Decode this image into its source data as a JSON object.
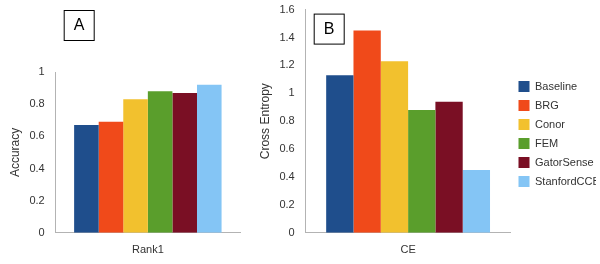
{
  "chart_data": [
    {
      "type": "bar",
      "annotation": "A",
      "ylabel": "Accuracy",
      "categories": [
        "Rank1"
      ],
      "series": [
        {
          "name": "Baseline",
          "color": "#1f4e8c",
          "values": [
            0.67
          ]
        },
        {
          "name": "BRG",
          "color": "#f04a1a",
          "values": [
            0.69
          ]
        },
        {
          "name": "Conor",
          "color": "#f2c12e",
          "values": [
            0.83
          ]
        },
        {
          "name": "FEM",
          "color": "#5a9e2c",
          "values": [
            0.88
          ]
        },
        {
          "name": "GatorSense",
          "color": "#7a0f24",
          "values": [
            0.87
          ]
        },
        {
          "name": "StanfordCCB",
          "color": "#84c5f5",
          "values": [
            0.92
          ]
        }
      ],
      "ylim": [
        0,
        1
      ],
      "yticks": [
        0,
        0.2,
        0.4,
        0.6,
        0.8,
        1
      ],
      "grid": false
    },
    {
      "type": "bar",
      "annotation": "B",
      "ylabel": "Cross Entropy",
      "categories": [
        "CE"
      ],
      "series": [
        {
          "name": "Baseline",
          "color": "#1f4e8c",
          "values": [
            1.13
          ]
        },
        {
          "name": "BRG",
          "color": "#f04a1a",
          "values": [
            1.45
          ]
        },
        {
          "name": "Conor",
          "color": "#f2c12e",
          "values": [
            1.23
          ]
        },
        {
          "name": "FEM",
          "color": "#5a9e2c",
          "values": [
            0.88
          ]
        },
        {
          "name": "GatorSense",
          "color": "#7a0f24",
          "values": [
            0.94
          ]
        },
        {
          "name": "StanfordCCB",
          "color": "#84c5f5",
          "values": [
            0.45
          ]
        }
      ],
      "ylim": [
        0,
        1.6
      ],
      "yticks": [
        0,
        0.2,
        0.4,
        0.6,
        0.8,
        1,
        1.2,
        1.4,
        1.6
      ],
      "grid": false,
      "legend": "right"
    }
  ]
}
